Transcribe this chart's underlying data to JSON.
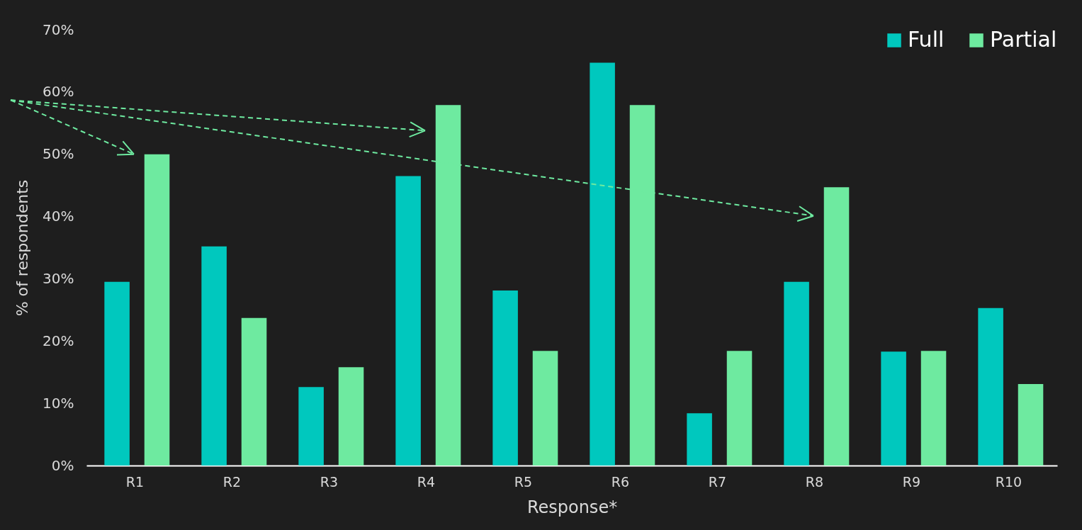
{
  "chart_data": {
    "type": "bar",
    "xlabel": "Response*",
    "ylabel": "% of respondents",
    "categories": [
      "R1",
      "R2",
      "R3",
      "R4",
      "R5",
      "R6",
      "R7",
      "R8",
      "R9",
      "R10"
    ],
    "series": [
      {
        "name": "Full",
        "color": "#00c8be",
        "values": [
          29.5,
          35.2,
          12.6,
          46.5,
          28.1,
          64.7,
          8.4,
          29.5,
          18.3,
          25.3
        ]
      },
      {
        "name": "Partial",
        "color": "#6eeaa0",
        "values": [
          50,
          23.7,
          15.8,
          57.9,
          18.4,
          57.9,
          18.4,
          44.7,
          18.4,
          13.1
        ]
      }
    ],
    "ylim": [
      0,
      70
    ],
    "yticks": [
      {
        "value": 0,
        "label": "0%"
      },
      {
        "value": 10,
        "label": "10%"
      },
      {
        "value": 20,
        "label": "20%"
      },
      {
        "value": 30,
        "label": "30%"
      },
      {
        "value": 40,
        "label": "40%"
      },
      {
        "value": 50,
        "label": "50%"
      },
      {
        "value": 60,
        "label": "60%"
      },
      {
        "value": 70,
        "label": "70%"
      }
    ],
    "grid": false,
    "legend": "top right"
  }
}
